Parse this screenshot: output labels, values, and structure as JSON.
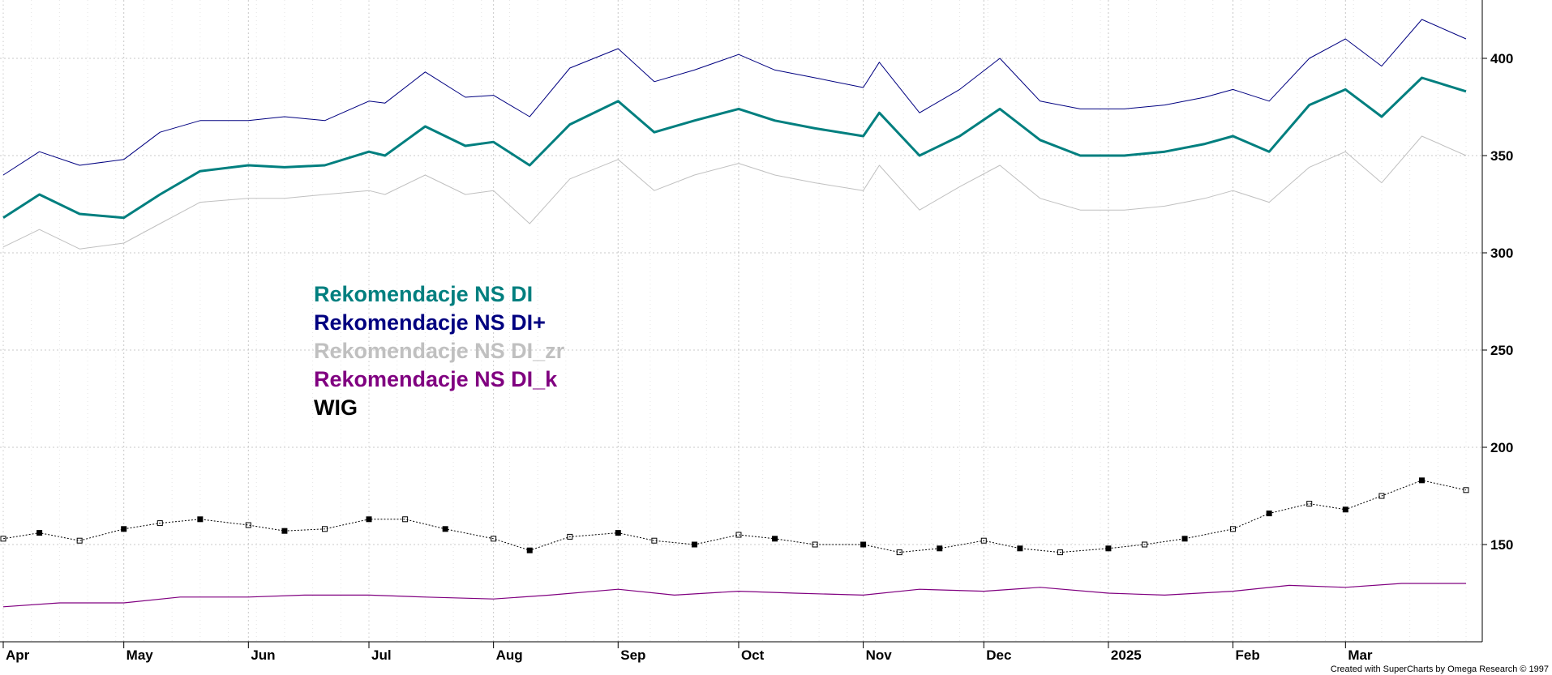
{
  "chart_data": {
    "type": "line",
    "title": "",
    "xlabel": "",
    "ylabel": "",
    "ylim": [
      100,
      430
    ],
    "y_ticks": [
      150,
      200,
      250,
      300,
      350,
      400
    ],
    "x_range": [
      "2024-04-01",
      "2025-03-31"
    ],
    "x_ticks": [
      {
        "label": "Apr",
        "date": "2024-04-01"
      },
      {
        "label": "May",
        "date": "2024-05-01"
      },
      {
        "label": "Jun",
        "date": "2024-06-01"
      },
      {
        "label": "Jul",
        "date": "2024-07-01"
      },
      {
        "label": "Aug",
        "date": "2024-08-01"
      },
      {
        "label": "Sep",
        "date": "2024-09-01"
      },
      {
        "label": "Oct",
        "date": "2024-10-01"
      },
      {
        "label": "Nov",
        "date": "2024-11-01"
      },
      {
        "label": "Dec",
        "date": "2024-12-01"
      },
      {
        "label": "2025",
        "date": "2025-01-01"
      },
      {
        "label": "Feb",
        "date": "2025-02-01"
      },
      {
        "label": "Mar",
        "date": "2025-03-01"
      }
    ],
    "grid": true,
    "legend_position": "center-left",
    "series": [
      {
        "name": "Rekomendacje NS DI",
        "color": "#007f7f",
        "x": [
          "2024-04-01",
          "2024-04-10",
          "2024-04-20",
          "2024-05-01",
          "2024-05-10",
          "2024-05-20",
          "2024-06-01",
          "2024-06-10",
          "2024-06-20",
          "2024-07-01",
          "2024-07-05",
          "2024-07-15",
          "2024-07-25",
          "2024-08-01",
          "2024-08-10",
          "2024-08-20",
          "2024-09-01",
          "2024-09-10",
          "2024-09-20",
          "2024-10-01",
          "2024-10-10",
          "2024-10-20",
          "2024-11-01",
          "2024-11-05",
          "2024-11-15",
          "2024-11-25",
          "2024-12-05",
          "2024-12-15",
          "2024-12-25",
          "2025-01-05",
          "2025-01-15",
          "2025-01-25",
          "2025-02-01",
          "2025-02-10",
          "2025-02-20",
          "2025-03-01",
          "2025-03-10",
          "2025-03-20",
          "2025-03-31"
        ],
        "values": [
          318,
          330,
          320,
          318,
          330,
          342,
          345,
          344,
          345,
          352,
          350,
          365,
          355,
          357,
          345,
          366,
          378,
          362,
          368,
          374,
          368,
          364,
          360,
          372,
          350,
          360,
          374,
          358,
          350,
          350,
          352,
          356,
          360,
          352,
          376,
          384,
          370,
          390,
          383
        ]
      },
      {
        "name": "Rekomendacje NS DI+",
        "color": "#000080",
        "x": [
          "2024-04-01",
          "2024-04-10",
          "2024-04-20",
          "2024-05-01",
          "2024-05-10",
          "2024-05-20",
          "2024-06-01",
          "2024-06-10",
          "2024-06-20",
          "2024-07-01",
          "2024-07-05",
          "2024-07-15",
          "2024-07-25",
          "2024-08-01",
          "2024-08-10",
          "2024-08-20",
          "2024-09-01",
          "2024-09-10",
          "2024-09-20",
          "2024-10-01",
          "2024-10-10",
          "2024-10-20",
          "2024-11-01",
          "2024-11-05",
          "2024-11-15",
          "2024-11-25",
          "2024-12-05",
          "2024-12-15",
          "2024-12-25",
          "2025-01-05",
          "2025-01-15",
          "2025-01-25",
          "2025-02-01",
          "2025-02-10",
          "2025-02-20",
          "2025-03-01",
          "2025-03-10",
          "2025-03-20",
          "2025-03-31"
        ],
        "values": [
          340,
          352,
          345,
          348,
          362,
          368,
          368,
          370,
          368,
          378,
          377,
          393,
          380,
          381,
          370,
          395,
          405,
          388,
          394,
          402,
          394,
          390,
          385,
          398,
          372,
          384,
          400,
          378,
          374,
          374,
          376,
          380,
          384,
          378,
          400,
          410,
          396,
          420,
          410
        ]
      },
      {
        "name": "Rekomendacje NS DI_zr",
        "color": "#c0c0c0",
        "x": [
          "2024-04-01",
          "2024-04-10",
          "2024-04-20",
          "2024-05-01",
          "2024-05-10",
          "2024-05-20",
          "2024-06-01",
          "2024-06-10",
          "2024-06-20",
          "2024-07-01",
          "2024-07-05",
          "2024-07-15",
          "2024-07-25",
          "2024-08-01",
          "2024-08-10",
          "2024-08-20",
          "2024-09-01",
          "2024-09-10",
          "2024-09-20",
          "2024-10-01",
          "2024-10-10",
          "2024-10-20",
          "2024-11-01",
          "2024-11-05",
          "2024-11-15",
          "2024-11-25",
          "2024-12-05",
          "2024-12-15",
          "2024-12-25",
          "2025-01-05",
          "2025-01-15",
          "2025-01-25",
          "2025-02-01",
          "2025-02-10",
          "2025-02-20",
          "2025-03-01",
          "2025-03-10",
          "2025-03-20",
          "2025-03-31"
        ],
        "values": [
          303,
          312,
          302,
          305,
          315,
          326,
          328,
          328,
          330,
          332,
          330,
          340,
          330,
          332,
          315,
          338,
          348,
          332,
          340,
          346,
          340,
          336,
          332,
          345,
          322,
          334,
          345,
          328,
          322,
          322,
          324,
          328,
          332,
          326,
          344,
          352,
          336,
          360,
          350
        ]
      },
      {
        "name": "Rekomendacje NS DI_k",
        "color": "#800080",
        "x": [
          "2024-04-01",
          "2024-04-15",
          "2024-05-01",
          "2024-05-15",
          "2024-06-01",
          "2024-06-15",
          "2024-07-01",
          "2024-07-15",
          "2024-08-01",
          "2024-08-15",
          "2024-09-01",
          "2024-09-15",
          "2024-10-01",
          "2024-10-15",
          "2024-11-01",
          "2024-11-15",
          "2024-12-01",
          "2024-12-15",
          "2025-01-01",
          "2025-01-15",
          "2025-02-01",
          "2025-02-15",
          "2025-03-01",
          "2025-03-15",
          "2025-03-31"
        ],
        "values": [
          118,
          120,
          120,
          123,
          123,
          124,
          124,
          123,
          122,
          124,
          127,
          124,
          126,
          125,
          124,
          127,
          126,
          128,
          125,
          124,
          126,
          129,
          128,
          130,
          130
        ]
      },
      {
        "name": "WIG",
        "color": "#000000",
        "x": [
          "2024-04-01",
          "2024-04-10",
          "2024-04-20",
          "2024-05-01",
          "2024-05-10",
          "2024-05-20",
          "2024-06-01",
          "2024-06-10",
          "2024-06-20",
          "2024-07-01",
          "2024-07-10",
          "2024-07-20",
          "2024-08-01",
          "2024-08-10",
          "2024-08-20",
          "2024-09-01",
          "2024-09-10",
          "2024-09-20",
          "2024-10-01",
          "2024-10-10",
          "2024-10-20",
          "2024-11-01",
          "2024-11-10",
          "2024-11-20",
          "2024-12-01",
          "2024-12-10",
          "2024-12-20",
          "2025-01-01",
          "2025-01-10",
          "2025-01-20",
          "2025-02-01",
          "2025-02-10",
          "2025-02-20",
          "2025-03-01",
          "2025-03-10",
          "2025-03-20",
          "2025-03-31"
        ],
        "values": [
          153,
          156,
          152,
          158,
          161,
          163,
          160,
          157,
          158,
          163,
          163,
          158,
          153,
          147,
          154,
          156,
          152,
          150,
          155,
          153,
          150,
          150,
          146,
          148,
          152,
          148,
          146,
          148,
          150,
          153,
          158,
          166,
          171,
          168,
          175,
          183,
          178
        ]
      }
    ]
  },
  "legend": [
    {
      "label": "Rekomendacje NS DI",
      "color": "#007f7f"
    },
    {
      "label": "Rekomendacje NS DI+",
      "color": "#000080"
    },
    {
      "label": "Rekomendacje NS DI_zr",
      "color": "#c0c0c0"
    },
    {
      "label": "Rekomendacje NS DI_k",
      "color": "#800080"
    },
    {
      "label": "WIG",
      "color": "#000000"
    }
  ],
  "credit": "Created with SuperCharts by Omega Research © 1997"
}
